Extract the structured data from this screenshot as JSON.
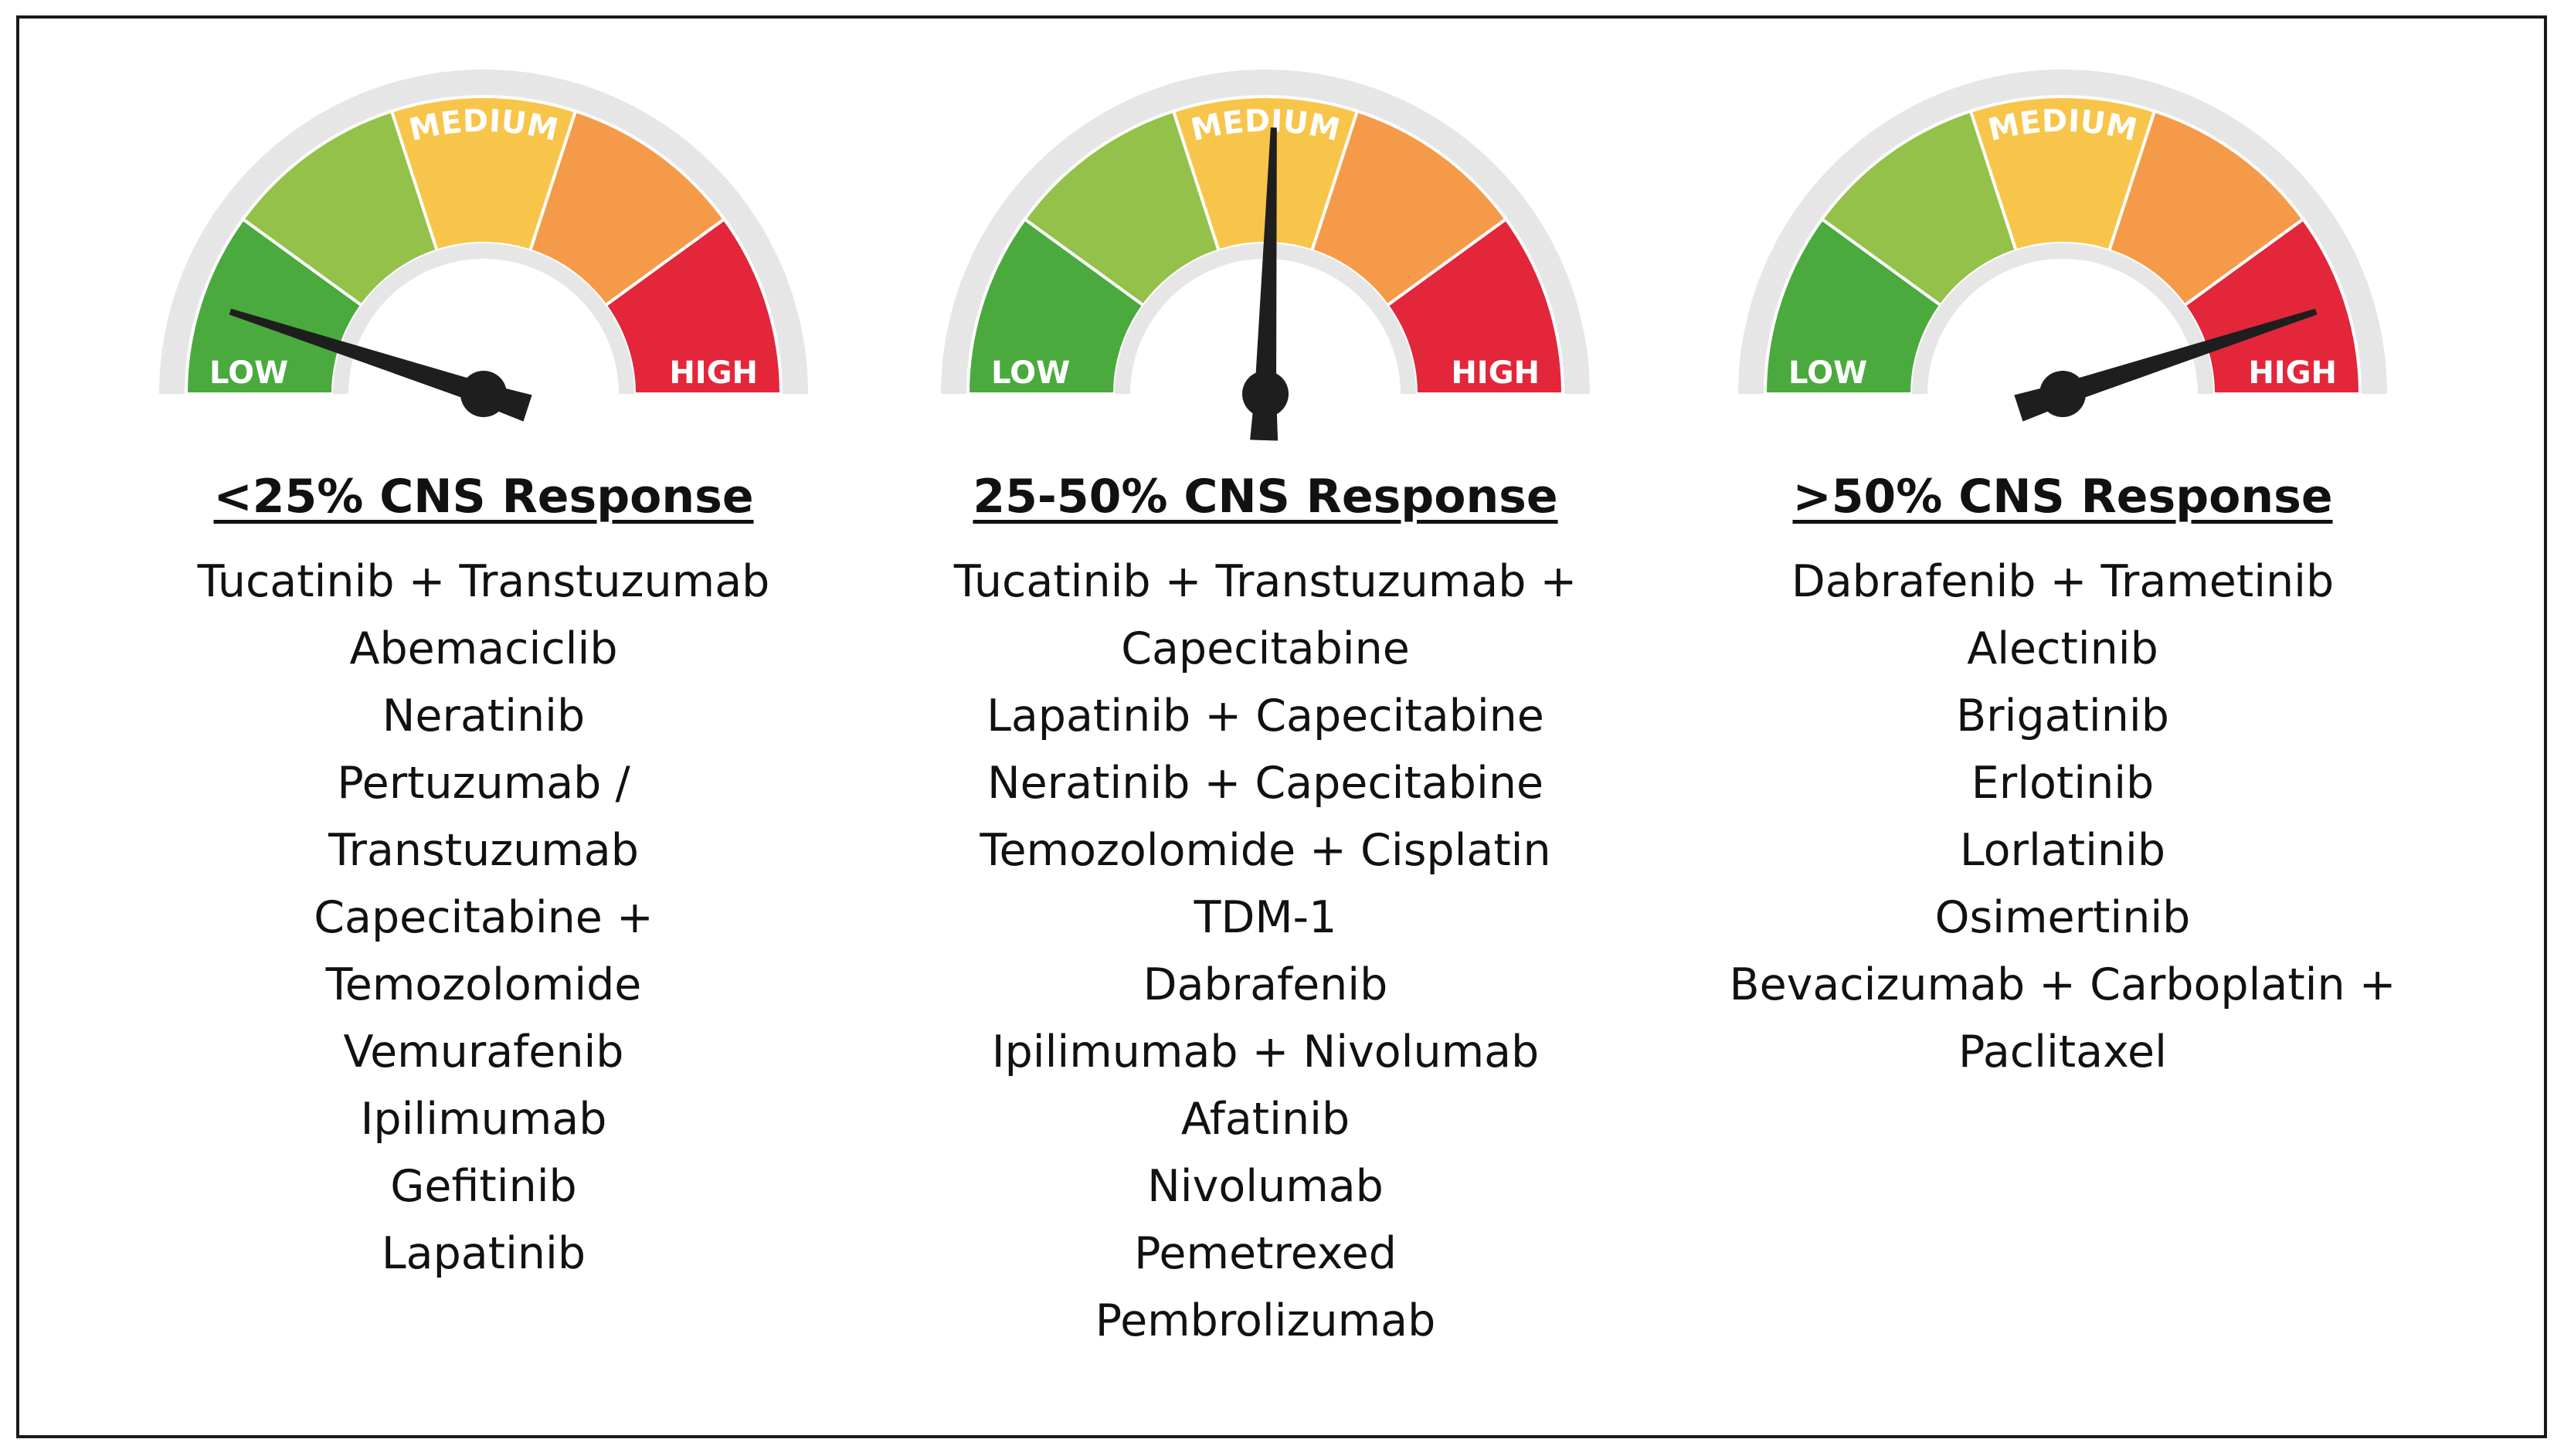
{
  "figure": {
    "panels": [
      {
        "heading": "<25% CNS Response",
        "needle_level": 0.1,
        "gauge_labels": {
          "low": "LOW",
          "medium": "MEDIUM",
          "high": "HIGH"
        },
        "drugs": [
          "Tucatinib + Transtuzumab",
          "Abemaciclib",
          "Neratinib",
          "Pertuzumab  /",
          "Transtuzumab",
          "Capecitabine +",
          "Temozolomide",
          "Vemurafenib",
          "Ipilimumab",
          "Gefitinib",
          "Lapatinib"
        ]
      },
      {
        "heading": "25-50% CNS Response",
        "needle_level": 0.51,
        "gauge_labels": {
          "low": "LOW",
          "medium": "MEDIUM",
          "high": "HIGH"
        },
        "drugs": [
          "Tucatinib + Transtuzumab  +",
          "Capecitabine",
          "Lapatinib + Capecitabine",
          "Neratinib + Capecitabine",
          "Temozolomide  + Cisplatin",
          "TDM-1",
          "Dabrafenib",
          "Ipilimumab + Nivolumab",
          "Afatinib",
          "Nivolumab",
          "Pemetrexed",
          "Pembrolizumab"
        ]
      },
      {
        "heading": ">50% CNS Response",
        "needle_level": 0.9,
        "gauge_labels": {
          "low": "LOW",
          "medium": "MEDIUM",
          "high": "HIGH"
        },
        "drugs": [
          "Dabrafenib + Trametinib",
          "Alectinib",
          "Brigatinib",
          "Erlotinib",
          "Lorlatinib",
          "Osimertinib",
          "Bevacizumab + Carboplatin +",
          "Paclitaxel"
        ]
      }
    ]
  },
  "colors": {
    "frame": "#1a1a1a",
    "rim": "#e6e6e6",
    "segments": [
      "#4aaa3e",
      "#93c14a",
      "#f8c54b",
      "#f59a48",
      "#e3263a"
    ],
    "segment_dividers": "#ffffff",
    "needle": "#1e1e1e"
  }
}
